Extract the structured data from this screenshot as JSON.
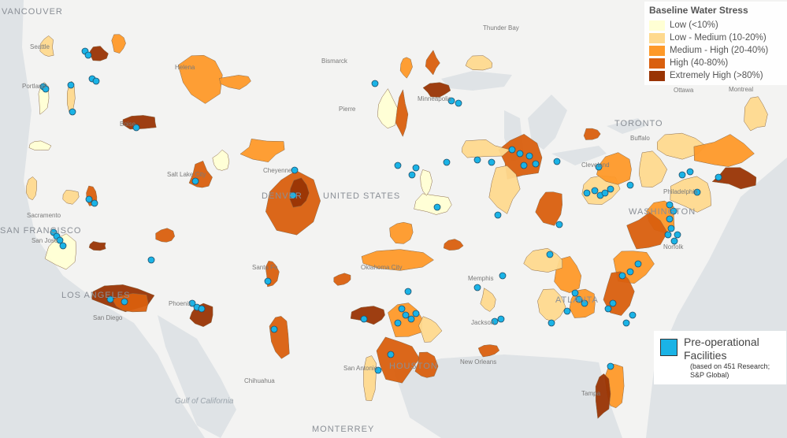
{
  "legend": {
    "title": "Baseline Water Stress",
    "items": [
      {
        "label": "Low (<10%)",
        "color": "#ffffd4"
      },
      {
        "label": "Low - Medium (10-20%)",
        "color": "#fed98e"
      },
      {
        "label": "Medium - High (20-40%)",
        "color": "#fe9929"
      },
      {
        "label": "High (40-80%)",
        "color": "#d95f0e"
      },
      {
        "label": "Extremely High (>80%)",
        "color": "#993404"
      }
    ]
  },
  "facilities_legend": {
    "lines": [
      "Pre-operational",
      "Facilities"
    ],
    "source": [
      "(based on 451 Research;",
      "S&P Global)"
    ],
    "color": "#1ab3e6"
  },
  "places": [
    "VANCOUVER",
    "Seattle",
    "Portland",
    "Helena",
    "Bismarck",
    "Pierre",
    "Minneapolis",
    "Thunder Bay",
    "Ottawa",
    "Montreal",
    "TORONTO",
    "Buffalo",
    "Boise",
    "Salt Lake City",
    "Cheyenne",
    "DENVER",
    "UNITED STATES",
    "Sacramento",
    "SAN FRANCISCO",
    "San Jose",
    "LOS ANGELES",
    "San Diego",
    "Phoenix",
    "Santa Fe",
    "Oklahoma City",
    "Memphis",
    "ATLANTA",
    "Jackson",
    "New Orleans",
    "San Antonio",
    "HOUSTON",
    "Chihuahua",
    "Gulf of California",
    "MONTERREY",
    "Philadelphia",
    "WASHINGTON",
    "Norfolk",
    "Tampa",
    "Cleveland"
  ]
}
